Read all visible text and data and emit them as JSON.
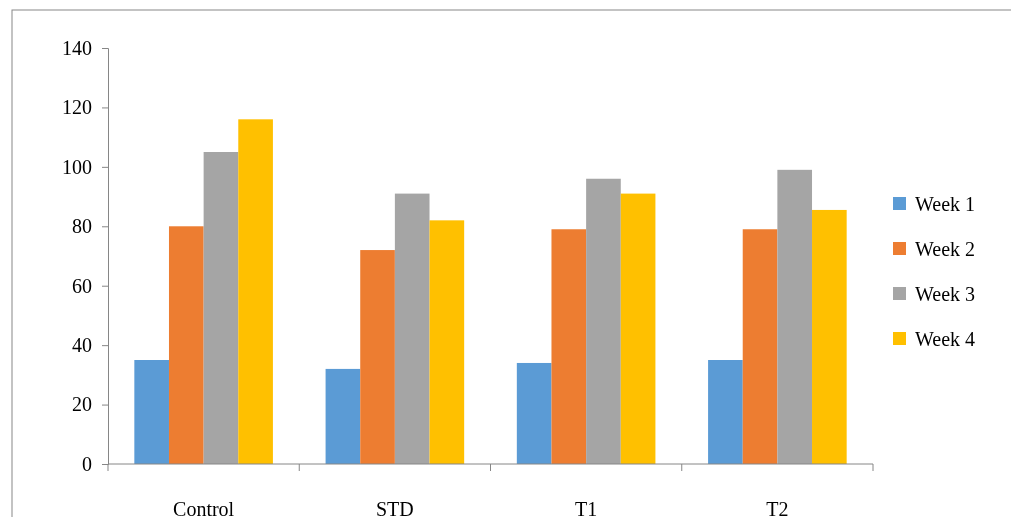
{
  "chart_data": {
    "type": "bar",
    "categories": [
      "Control",
      "STD",
      "T1",
      "T2"
    ],
    "series": [
      {
        "name": "Week 1",
        "color": "#5b9bd5",
        "values": [
          35,
          32,
          34,
          35
        ]
      },
      {
        "name": "Week 2",
        "color": "#ed7d31",
        "values": [
          80,
          72,
          79,
          79
        ]
      },
      {
        "name": "Week 3",
        "color": "#a5a5a5",
        "values": [
          105,
          91,
          96,
          99
        ]
      },
      {
        "name": "Week 4",
        "color": "#ffc000",
        "values": [
          116,
          82,
          91,
          85.5
        ]
      }
    ],
    "ylim": [
      0,
      140
    ],
    "yticks": [
      0,
      20,
      40,
      60,
      80,
      100,
      120,
      140
    ],
    "grid": false,
    "legend": "right"
  }
}
